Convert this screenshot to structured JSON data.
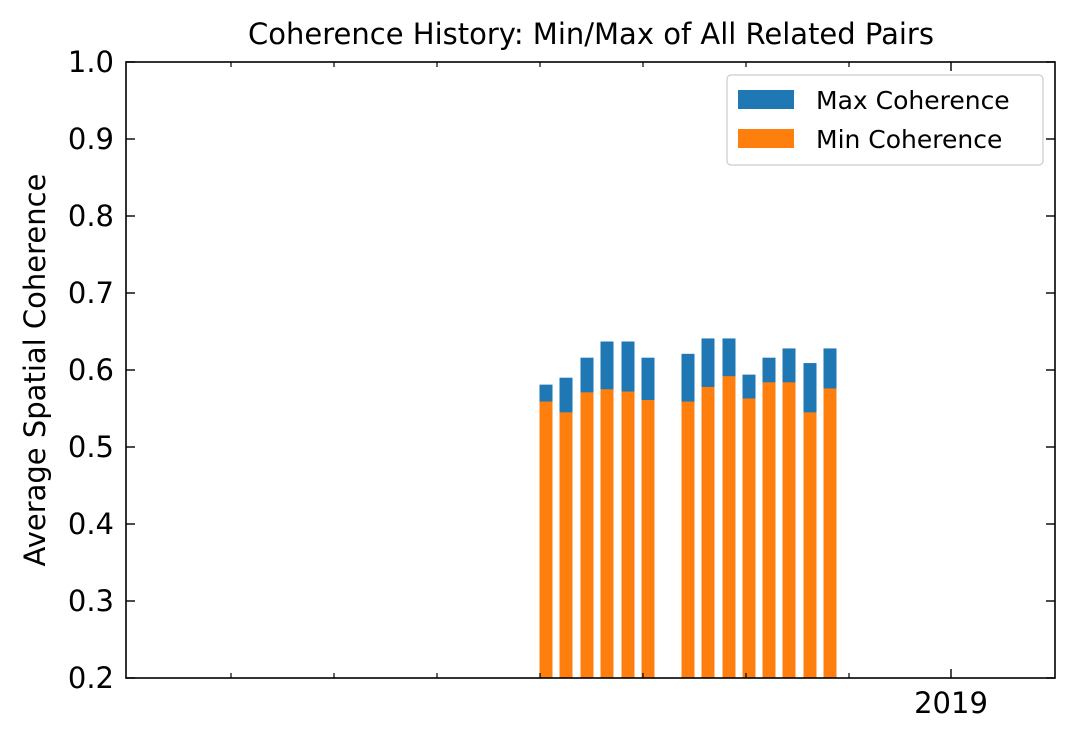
{
  "chart_data": {
    "type": "bar",
    "title": "Coherence History: Min/Max of All Related Pairs",
    "xlabel": "",
    "ylabel": "Average Spatial Coherence",
    "ylim": [
      0.2,
      1.0
    ],
    "y_ticks": [
      "0.2",
      "0.3",
      "0.4",
      "0.5",
      "0.6",
      "0.7",
      "0.8",
      "0.9",
      "1.0"
    ],
    "x_tick_labels": [
      {
        "label": "2019"
      }
    ],
    "legend_position": "top-right",
    "grid": false,
    "series": [
      {
        "name": "Max Coherence",
        "color": "#1f77b4",
        "values": [
          0.581,
          0.59,
          0.616,
          0.637,
          0.637,
          0.616,
          0.621,
          0.641,
          0.641,
          0.594,
          0.616,
          0.628,
          0.609,
          0.628
        ]
      },
      {
        "name": "Min Coherence",
        "color": "#ff7f0e",
        "values": [
          0.559,
          0.545,
          0.571,
          0.575,
          0.572,
          0.561,
          0.559,
          0.578,
          0.592,
          0.563,
          0.584,
          0.584,
          0.545,
          0.576
        ]
      }
    ]
  }
}
